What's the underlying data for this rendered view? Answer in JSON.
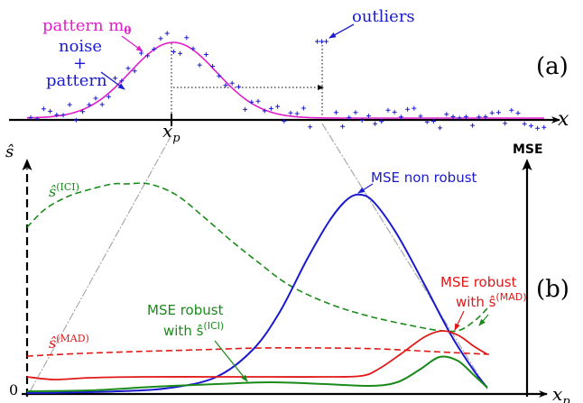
{
  "panel_a": {
    "tag": "(a)",
    "axis_label": "x",
    "tick_label": "x",
    "tick_sub": "p",
    "pattern_label": "pattern m",
    "pattern_sub": "θ",
    "noise_label_1": "noise",
    "noise_label_2": "+",
    "noise_label_3": "pattern",
    "outliers_label": "outliers"
  },
  "panel_b": {
    "tag": "(b)",
    "y_left_label": "ŝ",
    "y_right_label": "MSE",
    "x_label": "x",
    "x_sub": "p",
    "zero_label": "0",
    "ici_label": "ŝ",
    "ici_sup": "(ICI)",
    "mad_label": "ŝ",
    "mad_sup": "(MAD)",
    "mse_nonrobust_label": "MSE non robust",
    "mse_robust_ici_1": "MSE robust",
    "mse_robust_ici_2": "with ŝ",
    "mse_robust_ici_sup": "(ICI)",
    "mse_robust_mad_1": "MSE robust",
    "mse_robust_mad_2": "with ŝ",
    "mse_robust_mad_sup": "(MAD)"
  },
  "colors": {
    "pattern": "#e020c8",
    "noise": "#1a1ad0",
    "ici": "#1a8a1a",
    "mad": "#e01818",
    "mse": "#1a1ad0",
    "axis": "#000000",
    "guide": "#aaaaaa"
  }
}
